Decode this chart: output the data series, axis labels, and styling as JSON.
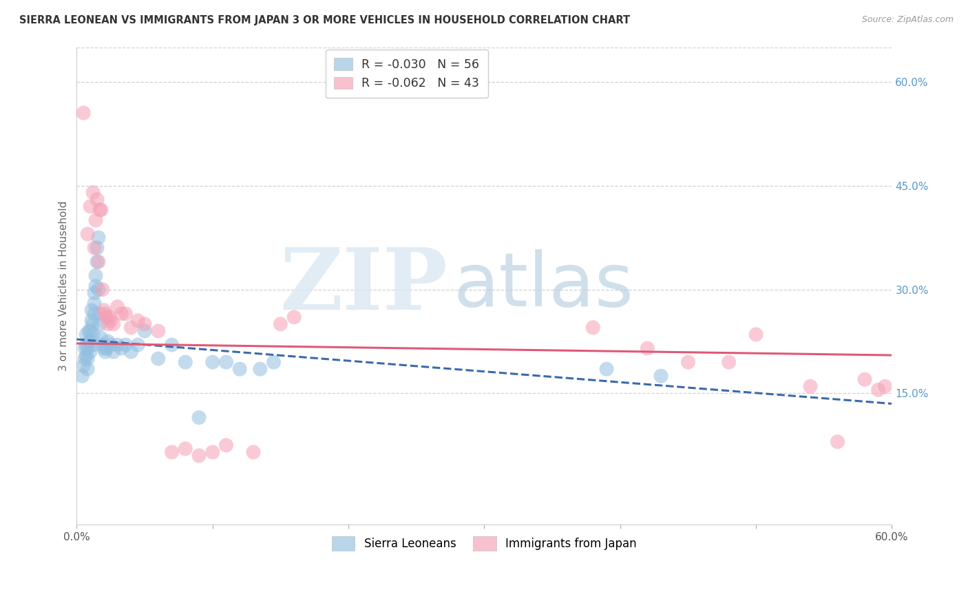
{
  "title": "SIERRA LEONEAN VS IMMIGRANTS FROM JAPAN 3 OR MORE VEHICLES IN HOUSEHOLD CORRELATION CHART",
  "source_text": "Source: ZipAtlas.com",
  "ylabel": "3 or more Vehicles in Household",
  "xlim": [
    0.0,
    0.6
  ],
  "ylim": [
    -0.04,
    0.65
  ],
  "x_ticks": [
    0.0,
    0.1,
    0.2,
    0.3,
    0.4,
    0.5,
    0.6
  ],
  "x_tick_labels": [
    "0.0%",
    "",
    "",
    "",
    "",
    "",
    "60.0%"
  ],
  "y_ticks_right": [
    0.15,
    0.3,
    0.45,
    0.6
  ],
  "y_tick_labels_right": [
    "15.0%",
    "30.0%",
    "45.0%",
    "60.0%"
  ],
  "blue_scatter_x": [
    0.004,
    0.005,
    0.006,
    0.006,
    0.007,
    0.007,
    0.007,
    0.008,
    0.008,
    0.008,
    0.009,
    0.009,
    0.01,
    0.01,
    0.01,
    0.011,
    0.011,
    0.012,
    0.012,
    0.012,
    0.013,
    0.013,
    0.013,
    0.014,
    0.014,
    0.015,
    0.015,
    0.016,
    0.016,
    0.017,
    0.017,
    0.018,
    0.019,
    0.02,
    0.021,
    0.022,
    0.023,
    0.025,
    0.027,
    0.03,
    0.033,
    0.036,
    0.04,
    0.045,
    0.05,
    0.06,
    0.07,
    0.08,
    0.09,
    0.1,
    0.11,
    0.12,
    0.135,
    0.145,
    0.39,
    0.43
  ],
  "blue_scatter_y": [
    0.175,
    0.19,
    0.2,
    0.215,
    0.205,
    0.22,
    0.235,
    0.185,
    0.2,
    0.215,
    0.225,
    0.24,
    0.21,
    0.225,
    0.24,
    0.255,
    0.27,
    0.22,
    0.235,
    0.25,
    0.265,
    0.28,
    0.295,
    0.305,
    0.32,
    0.34,
    0.36,
    0.375,
    0.3,
    0.265,
    0.25,
    0.23,
    0.22,
    0.215,
    0.21,
    0.215,
    0.225,
    0.22,
    0.21,
    0.22,
    0.215,
    0.22,
    0.21,
    0.22,
    0.24,
    0.2,
    0.22,
    0.195,
    0.115,
    0.195,
    0.195,
    0.185,
    0.185,
    0.195,
    0.185,
    0.175
  ],
  "pink_scatter_x": [
    0.005,
    0.008,
    0.01,
    0.012,
    0.013,
    0.014,
    0.015,
    0.016,
    0.017,
    0.018,
    0.019,
    0.02,
    0.021,
    0.022,
    0.023,
    0.024,
    0.025,
    0.027,
    0.03,
    0.033,
    0.036,
    0.04,
    0.045,
    0.05,
    0.06,
    0.07,
    0.08,
    0.09,
    0.1,
    0.11,
    0.13,
    0.15,
    0.16,
    0.38,
    0.42,
    0.45,
    0.48,
    0.5,
    0.54,
    0.56,
    0.58,
    0.59,
    0.595
  ],
  "pink_scatter_y": [
    0.555,
    0.38,
    0.42,
    0.44,
    0.36,
    0.4,
    0.43,
    0.34,
    0.415,
    0.415,
    0.3,
    0.27,
    0.265,
    0.26,
    0.25,
    0.26,
    0.255,
    0.25,
    0.275,
    0.265,
    0.265,
    0.245,
    0.255,
    0.25,
    0.24,
    0.065,
    0.07,
    0.06,
    0.065,
    0.075,
    0.065,
    0.25,
    0.26,
    0.245,
    0.215,
    0.195,
    0.195,
    0.235,
    0.16,
    0.08,
    0.17,
    0.155,
    0.16
  ],
  "blue_line_x": [
    0.0,
    0.6
  ],
  "blue_line_y": [
    0.228,
    0.135
  ],
  "pink_line_x": [
    0.0,
    0.6
  ],
  "pink_line_y": [
    0.222,
    0.205
  ],
  "background_color": "#ffffff",
  "grid_color": "#cccccc",
  "blue_scatter_color": "#92bfdf",
  "pink_scatter_color": "#f5a0b5",
  "blue_line_color": "#3a6aaa",
  "pink_line_color": "#e05878",
  "right_tick_color": "#5599cc",
  "title_fontsize": 10.5,
  "tick_fontsize": 11,
  "ylabel_fontsize": 11
}
